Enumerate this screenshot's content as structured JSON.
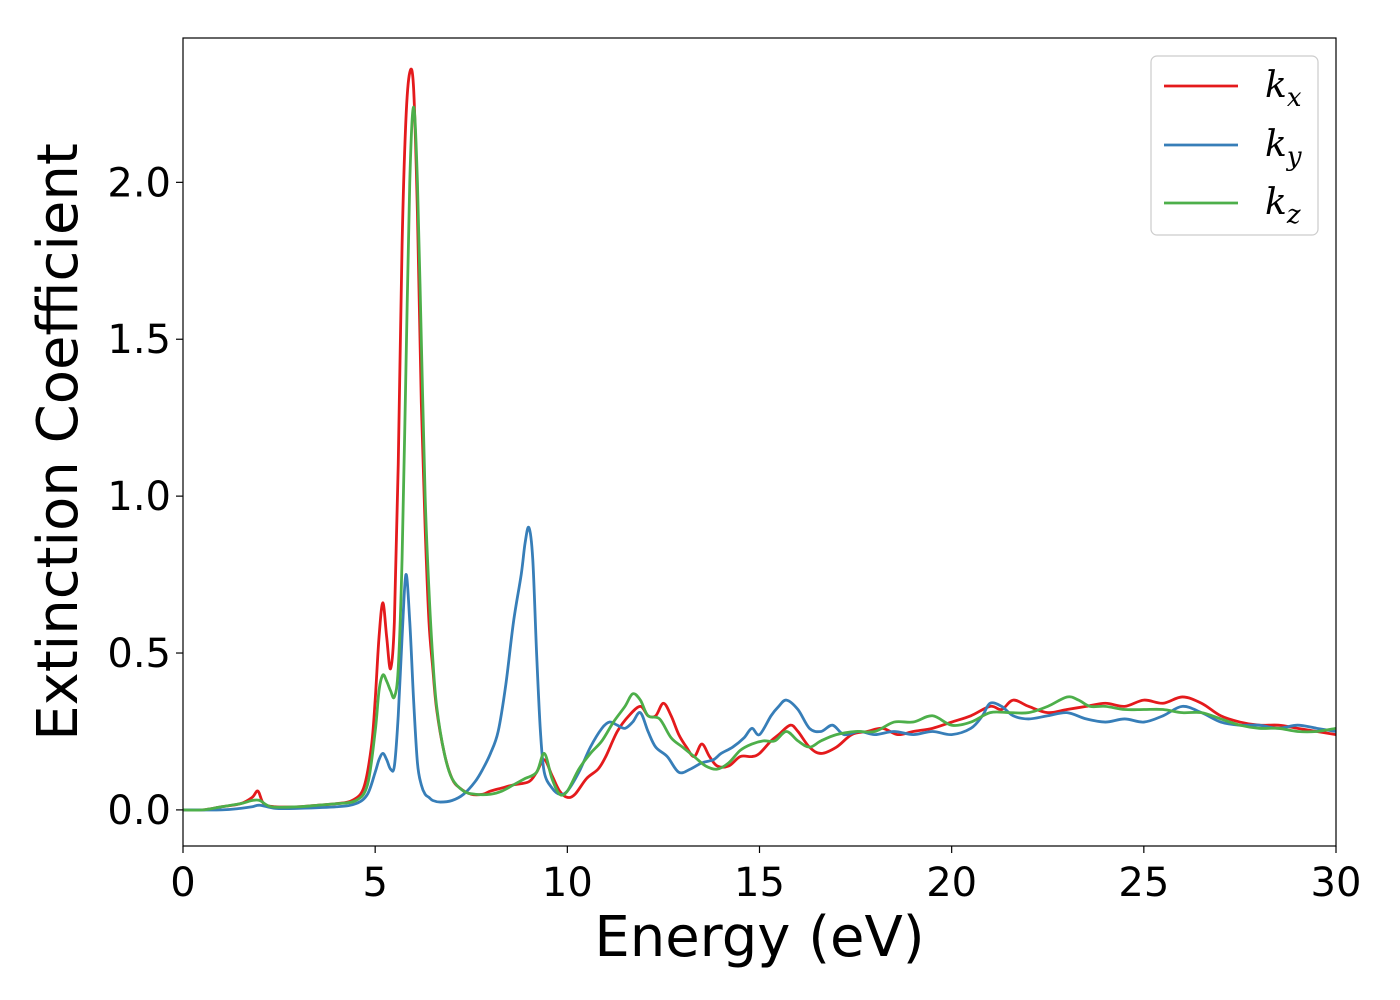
{
  "chart_data": {
    "type": "line",
    "xlabel": "Energy (eV)",
    "ylabel": "Extinction Coefficient",
    "xlim": [
      0,
      30
    ],
    "ylim": [
      -0.115,
      2.46
    ],
    "xticks": [
      0,
      5,
      10,
      15,
      20,
      25,
      30
    ],
    "yticks": [
      0.0,
      0.5,
      1.0,
      1.5,
      2.0
    ],
    "xtick_labels": [
      "0",
      "5",
      "10",
      "15",
      "20",
      "25",
      "30"
    ],
    "ytick_labels": [
      "0.0",
      "0.5",
      "1.0",
      "1.5",
      "2.0"
    ],
    "grid": false,
    "legend_position": "top-right",
    "series": [
      {
        "name": "k_x",
        "label_main": "k",
        "label_sub": "x",
        "color": "#e41a1c",
        "x": [
          0,
          0.5,
          1.0,
          1.5,
          1.8,
          1.95,
          2.1,
          2.4,
          3.0,
          3.5,
          4.0,
          4.4,
          4.7,
          4.9,
          5.0,
          5.1,
          5.2,
          5.3,
          5.4,
          5.5,
          5.6,
          5.7,
          5.8,
          5.9,
          6.0,
          6.1,
          6.2,
          6.3,
          6.4,
          6.5,
          6.6,
          6.8,
          7.0,
          7.2,
          7.5,
          7.8,
          8.0,
          8.3,
          8.6,
          9.0,
          9.2,
          9.4,
          9.6,
          9.8,
          10.0,
          10.2,
          10.5,
          10.8,
          11.0,
          11.3,
          11.6,
          11.9,
          12.1,
          12.3,
          12.5,
          12.7,
          12.9,
          13.1,
          13.3,
          13.5,
          13.7,
          13.9,
          14.2,
          14.5,
          14.8,
          15.0,
          15.3,
          15.5,
          15.8,
          16.0,
          16.3,
          16.6,
          17.0,
          17.4,
          17.8,
          18.2,
          18.6,
          19.0,
          19.5,
          20.0,
          20.5,
          21.0,
          21.3,
          21.6,
          22.0,
          22.5,
          23.0,
          23.5,
          24.0,
          24.5,
          25.0,
          25.5,
          26.0,
          26.5,
          27.0,
          27.5,
          28.0,
          28.5,
          29.0,
          29.5,
          30.0
        ],
        "y": [
          0.0,
          0.0,
          0.01,
          0.02,
          0.04,
          0.06,
          0.02,
          0.01,
          0.01,
          0.015,
          0.02,
          0.03,
          0.07,
          0.2,
          0.35,
          0.55,
          0.66,
          0.55,
          0.45,
          0.6,
          1.1,
          1.8,
          2.2,
          2.35,
          2.3,
          1.9,
          1.3,
          0.9,
          0.6,
          0.45,
          0.32,
          0.18,
          0.1,
          0.07,
          0.05,
          0.05,
          0.06,
          0.07,
          0.08,
          0.09,
          0.12,
          0.16,
          0.11,
          0.06,
          0.04,
          0.05,
          0.1,
          0.13,
          0.17,
          0.25,
          0.3,
          0.33,
          0.3,
          0.3,
          0.34,
          0.3,
          0.24,
          0.2,
          0.17,
          0.21,
          0.17,
          0.14,
          0.14,
          0.17,
          0.17,
          0.18,
          0.22,
          0.24,
          0.27,
          0.25,
          0.2,
          0.18,
          0.2,
          0.24,
          0.25,
          0.26,
          0.24,
          0.25,
          0.26,
          0.28,
          0.3,
          0.33,
          0.32,
          0.35,
          0.33,
          0.31,
          0.32,
          0.33,
          0.34,
          0.33,
          0.35,
          0.34,
          0.36,
          0.34,
          0.3,
          0.28,
          0.27,
          0.27,
          0.26,
          0.25,
          0.24
        ]
      },
      {
        "name": "k_y",
        "label_main": "k",
        "label_sub": "y",
        "color": "#377eb8",
        "x": [
          0,
          1.0,
          1.5,
          1.8,
          2.0,
          2.4,
          3.0,
          4.0,
          4.5,
          4.8,
          5.0,
          5.1,
          5.2,
          5.3,
          5.4,
          5.5,
          5.6,
          5.7,
          5.8,
          5.9,
          6.0,
          6.1,
          6.2,
          6.3,
          6.4,
          6.5,
          6.7,
          7.0,
          7.3,
          7.6,
          7.8,
          8.0,
          8.2,
          8.4,
          8.6,
          8.8,
          8.9,
          9.0,
          9.1,
          9.2,
          9.3,
          9.4,
          9.6,
          9.8,
          10.0,
          10.3,
          10.6,
          10.9,
          11.1,
          11.3,
          11.5,
          11.7,
          11.9,
          12.1,
          12.3,
          12.6,
          12.9,
          13.2,
          13.5,
          13.8,
          14.0,
          14.3,
          14.6,
          14.8,
          15.0,
          15.3,
          15.5,
          15.7,
          16.0,
          16.3,
          16.6,
          16.9,
          17.2,
          17.6,
          18.0,
          18.5,
          19.0,
          19.5,
          20.0,
          20.5,
          20.8,
          21.0,
          21.3,
          21.6,
          22.0,
          22.5,
          23.0,
          23.5,
          24.0,
          24.5,
          25.0,
          25.5,
          26.0,
          26.5,
          27.0,
          27.5,
          28.0,
          28.5,
          29.0,
          29.5,
          30.0
        ],
        "y": [
          0.0,
          0.0,
          0.005,
          0.01,
          0.015,
          0.005,
          0.005,
          0.01,
          0.02,
          0.05,
          0.12,
          0.16,
          0.18,
          0.16,
          0.13,
          0.14,
          0.3,
          0.55,
          0.75,
          0.6,
          0.35,
          0.15,
          0.08,
          0.05,
          0.04,
          0.03,
          0.025,
          0.03,
          0.05,
          0.09,
          0.13,
          0.18,
          0.25,
          0.4,
          0.6,
          0.75,
          0.85,
          0.9,
          0.8,
          0.5,
          0.25,
          0.12,
          0.07,
          0.05,
          0.06,
          0.12,
          0.2,
          0.26,
          0.28,
          0.27,
          0.26,
          0.28,
          0.31,
          0.25,
          0.2,
          0.17,
          0.12,
          0.13,
          0.15,
          0.16,
          0.18,
          0.2,
          0.23,
          0.26,
          0.24,
          0.3,
          0.33,
          0.35,
          0.32,
          0.26,
          0.25,
          0.27,
          0.24,
          0.25,
          0.24,
          0.25,
          0.24,
          0.25,
          0.24,
          0.26,
          0.3,
          0.34,
          0.33,
          0.3,
          0.29,
          0.3,
          0.31,
          0.29,
          0.28,
          0.29,
          0.28,
          0.3,
          0.33,
          0.31,
          0.28,
          0.27,
          0.27,
          0.26,
          0.27,
          0.26,
          0.25
        ]
      },
      {
        "name": "k_z",
        "label_main": "k",
        "label_sub": "z",
        "color": "#4daf4a",
        "x": [
          0,
          0.5,
          1.0,
          1.5,
          1.8,
          2.0,
          2.3,
          3.0,
          3.5,
          4.0,
          4.5,
          4.8,
          5.0,
          5.1,
          5.2,
          5.3,
          5.4,
          5.5,
          5.6,
          5.7,
          5.8,
          5.9,
          6.0,
          6.1,
          6.2,
          6.3,
          6.4,
          6.5,
          6.6,
          6.8,
          7.0,
          7.3,
          7.6,
          8.0,
          8.3,
          8.6,
          8.9,
          9.2,
          9.4,
          9.6,
          9.8,
          10.0,
          10.3,
          10.6,
          10.9,
          11.2,
          11.5,
          11.7,
          11.9,
          12.1,
          12.4,
          12.7,
          13.0,
          13.3,
          13.6,
          13.9,
          14.2,
          14.5,
          14.8,
          15.1,
          15.4,
          15.7,
          16.0,
          16.3,
          16.6,
          17.0,
          17.5,
          18.0,
          18.5,
          19.0,
          19.5,
          20.0,
          20.5,
          21.0,
          21.5,
          22.0,
          22.5,
          23.0,
          23.3,
          23.6,
          24.0,
          24.5,
          25.0,
          25.5,
          26.0,
          26.5,
          27.0,
          27.5,
          28.0,
          28.5,
          29.0,
          29.5,
          30.0
        ],
        "y": [
          0.0,
          0.0,
          0.01,
          0.02,
          0.03,
          0.03,
          0.01,
          0.01,
          0.015,
          0.02,
          0.03,
          0.08,
          0.25,
          0.38,
          0.43,
          0.41,
          0.38,
          0.36,
          0.45,
          0.8,
          1.4,
          2.0,
          2.24,
          2.0,
          1.5,
          1.0,
          0.7,
          0.48,
          0.33,
          0.18,
          0.1,
          0.06,
          0.05,
          0.05,
          0.06,
          0.08,
          0.1,
          0.12,
          0.18,
          0.1,
          0.05,
          0.06,
          0.13,
          0.18,
          0.22,
          0.28,
          0.33,
          0.37,
          0.35,
          0.3,
          0.29,
          0.23,
          0.2,
          0.17,
          0.14,
          0.13,
          0.15,
          0.19,
          0.21,
          0.22,
          0.22,
          0.25,
          0.22,
          0.2,
          0.22,
          0.24,
          0.25,
          0.25,
          0.28,
          0.28,
          0.3,
          0.27,
          0.28,
          0.31,
          0.31,
          0.31,
          0.33,
          0.36,
          0.35,
          0.33,
          0.33,
          0.32,
          0.32,
          0.32,
          0.31,
          0.31,
          0.29,
          0.27,
          0.26,
          0.26,
          0.25,
          0.25,
          0.26
        ]
      }
    ]
  }
}
